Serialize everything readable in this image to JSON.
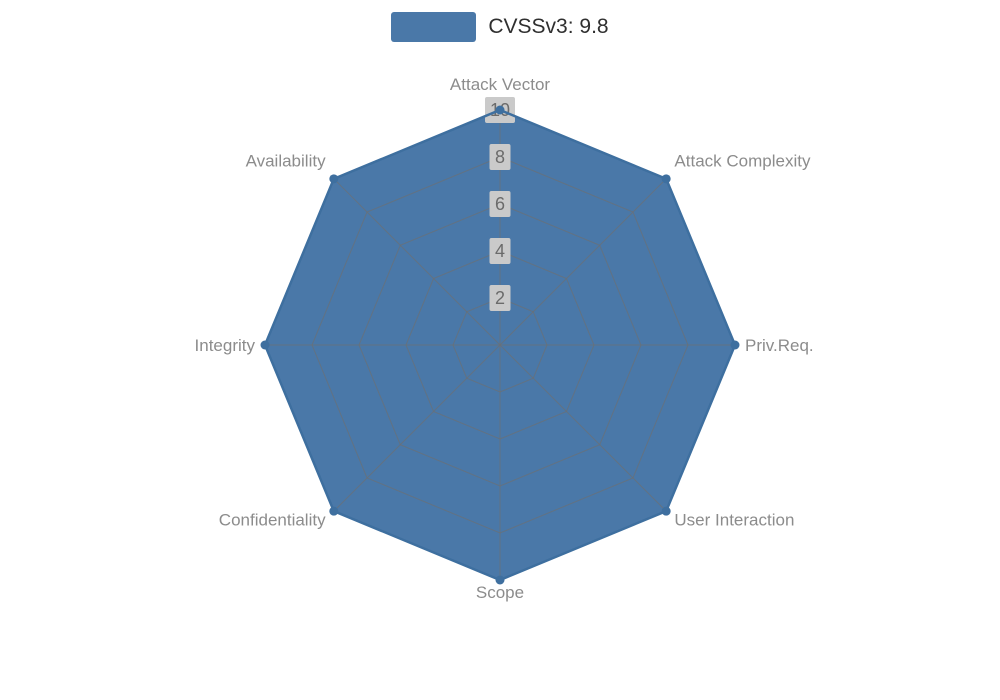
{
  "chart_data": {
    "type": "radar",
    "legend": {
      "label": "CVSSv3: 9.8",
      "swatch_color": "#4a78a8"
    },
    "categories": [
      "Attack Vector",
      "Attack Complexity",
      "Priv.Req.",
      "User Interaction",
      "Scope",
      "Confidentiality",
      "Integrity",
      "Availability"
    ],
    "series": [
      {
        "name": "CVSSv3: 9.8",
        "values": [
          10,
          10,
          10,
          10,
          10,
          10,
          10,
          10
        ]
      }
    ],
    "radial_ticks": [
      2,
      4,
      6,
      8,
      10
    ],
    "rlim": [
      0,
      10
    ],
    "grid": true,
    "legend_position": "top-center",
    "fill_color": "#4a78a8",
    "stroke_color": "#3e6f9f",
    "grid_color": "#6f6f6f",
    "label_color": "#8c8c8c",
    "tick_text_color": "#6b6b6b",
    "tick_bg_color": "#cacaca"
  }
}
